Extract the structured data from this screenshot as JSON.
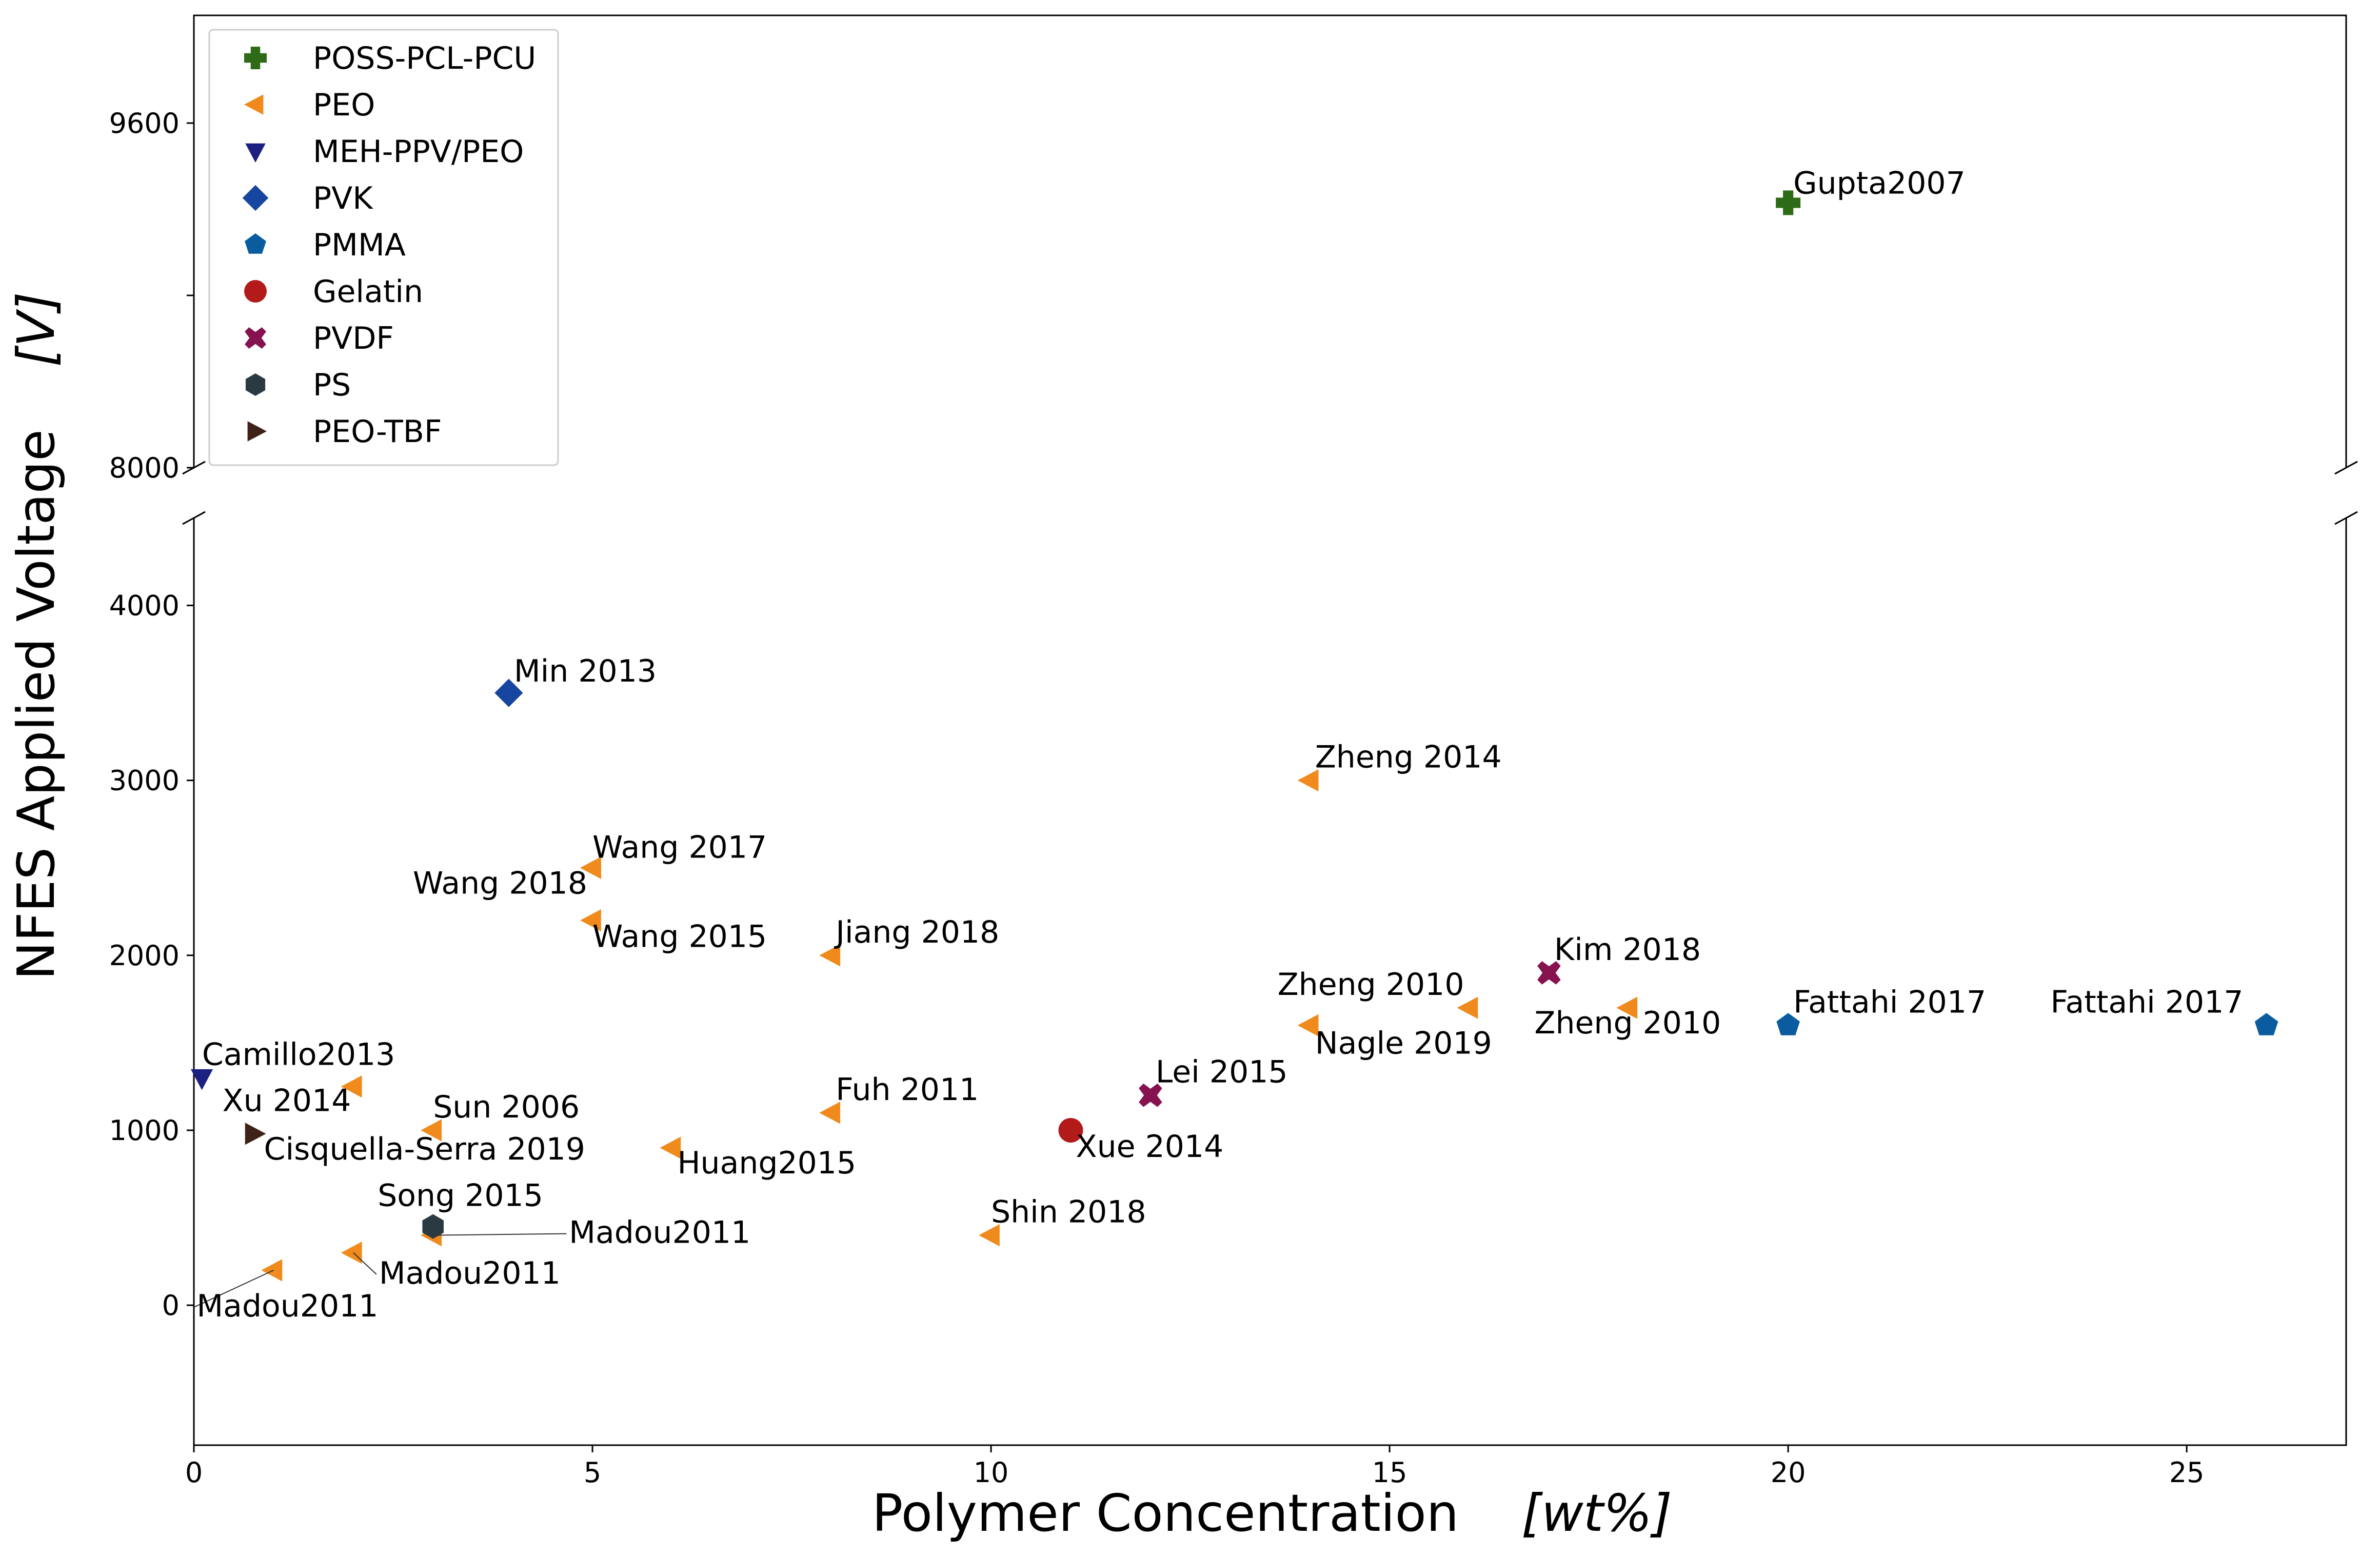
{
  "chart_data": {
    "type": "scatter",
    "xlabel": "Polymer Concentration",
    "xlabel_unit": "[wt%]",
    "ylabel": "NFES Applied Voltage",
    "ylabel_unit": "[V]",
    "broken_y_axis": true,
    "xlim": [
      0,
      27
    ],
    "ylim_lower": [
      -800,
      4500
    ],
    "ylim_upper": [
      8000,
      10100
    ],
    "xticks": [
      "0",
      "5",
      "10",
      "15",
      "20",
      "25"
    ],
    "yticks_lower": [
      "0",
      "1000",
      "2000",
      "3000",
      "4000"
    ],
    "yticks_upper": [
      "8000",
      "9600"
    ],
    "legend_position": "top-left",
    "series": [
      {
        "name": "POSS-PCL-PCU",
        "marker": "plus",
        "color": "#2e6b16",
        "points": [
          {
            "x": 20,
            "y": 9230,
            "label": "Gupta2007"
          }
        ]
      },
      {
        "name": "PEO",
        "marker": "triangle-left",
        "color": "#f08a1c",
        "points": [
          {
            "x": 1,
            "y": 200,
            "label": "Madou2011"
          },
          {
            "x": 2,
            "y": 300,
            "label": "Madou2011"
          },
          {
            "x": 3,
            "y": 400,
            "label": "Madou2011"
          },
          {
            "x": 2,
            "y": 1250,
            "label": "Camillo2013"
          },
          {
            "x": 3,
            "y": 1000,
            "label": "Sun 2006"
          },
          {
            "x": 5,
            "y": 2500,
            "label": "Wang 2017"
          },
          {
            "x": 5,
            "y": 2500,
            "label": "Wang 2018"
          },
          {
            "x": 5,
            "y": 2200,
            "label": "Wang 2015"
          },
          {
            "x": 6,
            "y": 900,
            "label": "Huang2015"
          },
          {
            "x": 8,
            "y": 2000,
            "label": "Jiang 2018"
          },
          {
            "x": 8,
            "y": 1100,
            "label": "Fuh 2011"
          },
          {
            "x": 10,
            "y": 400,
            "label": "Shin 2018"
          },
          {
            "x": 14,
            "y": 3000,
            "label": "Zheng 2014"
          },
          {
            "x": 14,
            "y": 1600,
            "label": "Nagle 2019"
          },
          {
            "x": 16,
            "y": 1700,
            "label": "Zheng 2010"
          },
          {
            "x": 18,
            "y": 1700,
            "label": "Zheng 2010"
          }
        ]
      },
      {
        "name": "MEH-PPV/PEO",
        "marker": "triangle-down",
        "color": "#1c2080",
        "points": [
          {
            "x": 0.1,
            "y": 1300,
            "label": "Xu 2014"
          }
        ]
      },
      {
        "name": "PVK",
        "marker": "diamond",
        "color": "#1746a0",
        "points": [
          {
            "x": 3.95,
            "y": 3500,
            "label": "Min 2013"
          }
        ]
      },
      {
        "name": "PMMA",
        "marker": "pentagon",
        "color": "#0a5c9e",
        "points": [
          {
            "x": 20,
            "y": 1600,
            "label": "Fattahi 2017"
          },
          {
            "x": 26,
            "y": 1600,
            "label": "Fattahi 2017"
          }
        ]
      },
      {
        "name": "Gelatin",
        "marker": "circle",
        "color": "#b31b1b",
        "points": [
          {
            "x": 11,
            "y": 1000,
            "label": "Xue 2014"
          }
        ]
      },
      {
        "name": "PVDF",
        "marker": "x",
        "color": "#86124f",
        "points": [
          {
            "x": 12,
            "y": 1200,
            "label": "Lei 2015"
          },
          {
            "x": 17,
            "y": 1900,
            "label": "Kim 2018"
          }
        ]
      },
      {
        "name": "PS",
        "marker": "hexagon",
        "color": "#2b3a42",
        "points": [
          {
            "x": 3,
            "y": 450,
            "label": "Song 2015"
          }
        ]
      },
      {
        "name": "PEO-TBF",
        "marker": "triangle-right",
        "color": "#3f2217",
        "points": [
          {
            "x": 0.75,
            "y": 980,
            "label": "Cisquella-Serra 2019"
          }
        ]
      }
    ]
  }
}
